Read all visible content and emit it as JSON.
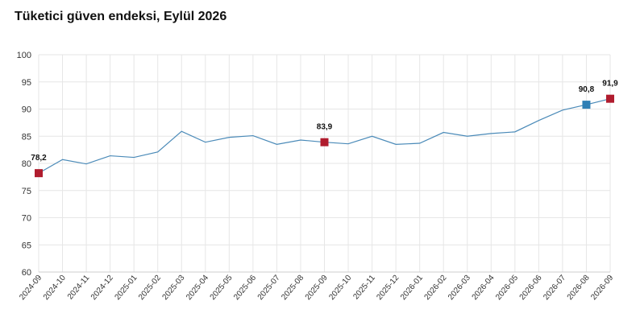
{
  "title": "Tüketici güven endeksi, Eylül 2026",
  "chart_data": {
    "type": "line",
    "title": "Tüketici güven endeksi, Eylül 2026",
    "xlabel": "",
    "ylabel": "",
    "ylim": [
      60,
      100
    ],
    "yticks": [
      60,
      65,
      70,
      75,
      80,
      85,
      90,
      95,
      100
    ],
    "grid": true,
    "legend": "none",
    "line_color": "#4a8ab8",
    "highlight_color": "#b01c2e",
    "accent_color": "#2f7fb5",
    "categories": [
      "2024-09",
      "2024-10",
      "2024-11",
      "2024-12",
      "2025-01",
      "2025-02",
      "2025-03",
      "2025-04",
      "2025-05",
      "2025-06",
      "2025-07",
      "2025-08",
      "2025-09",
      "2025-10",
      "2025-11",
      "2025-12",
      "2026-01",
      "2026-02",
      "2026-03",
      "2026-04",
      "2026-05",
      "2026-06",
      "2026-07",
      "2026-08",
      "2026-09"
    ],
    "series": [
      {
        "values": [
          78.2,
          80.7,
          79.9,
          81.4,
          81.1,
          82.1,
          85.9,
          83.9,
          84.8,
          85.1,
          83.5,
          84.3,
          83.9,
          83.6,
          85.0,
          83.5,
          83.7,
          85.7,
          85.0,
          85.5,
          85.8,
          87.9,
          89.8,
          90.8,
          91.9
        ]
      }
    ],
    "markers": [
      {
        "category": "2024-09",
        "value": 78.2,
        "label": "78,2",
        "color": "#b01c2e"
      },
      {
        "category": "2025-09",
        "value": 83.9,
        "label": "83,9",
        "color": "#b01c2e"
      },
      {
        "category": "2026-08",
        "value": 90.8,
        "label": "90,8",
        "color": "#2f7fb5"
      },
      {
        "category": "2026-09",
        "value": 91.9,
        "label": "91,9",
        "color": "#b01c2e"
      }
    ]
  }
}
